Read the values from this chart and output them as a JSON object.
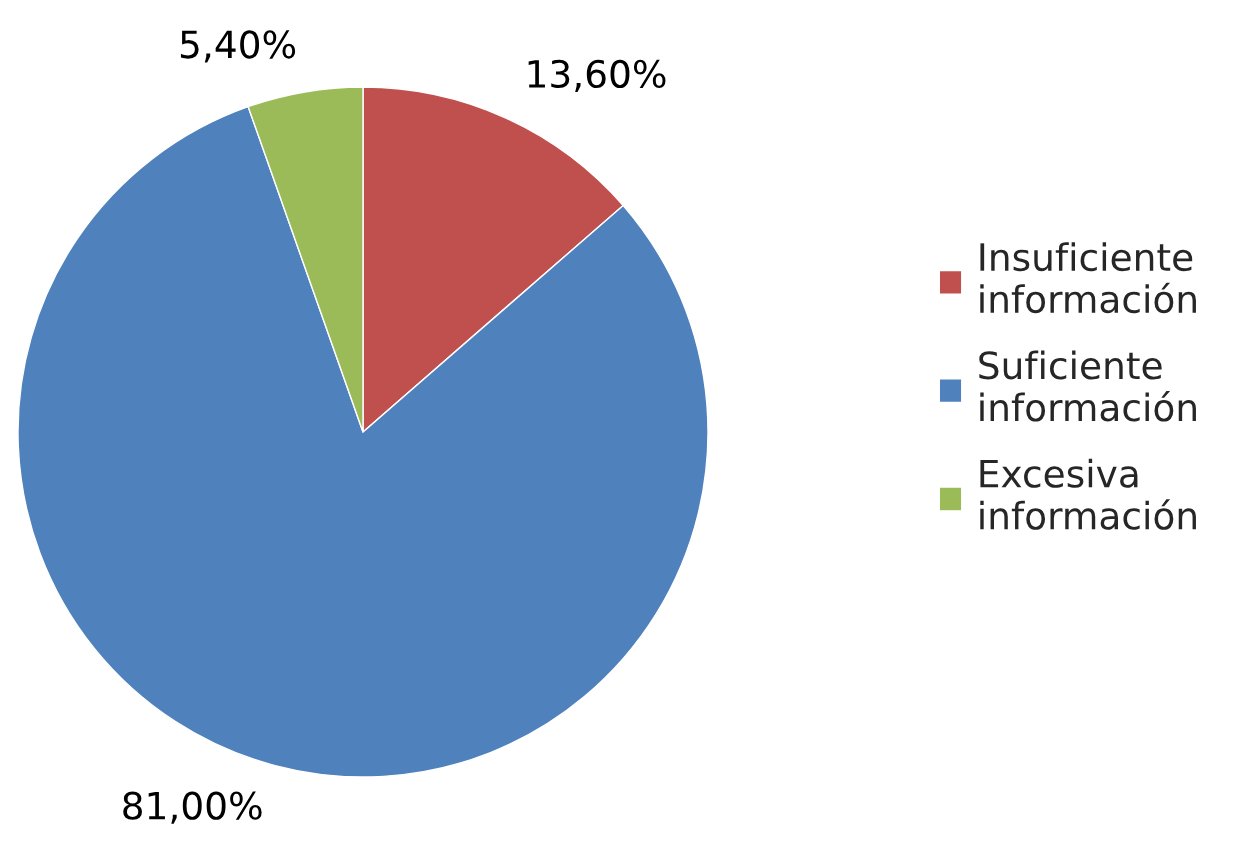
{
  "chart_data": {
    "type": "pie",
    "categories": [
      "Insuficiente\ninformación",
      "Suficiente\ninformación",
      "Excesiva\ninformación"
    ],
    "values": [
      13.6,
      81.0,
      5.4
    ],
    "colors": [
      "#c0504d",
      "#4f81bd",
      "#9bbb59"
    ],
    "value_labels": [
      "13,60%",
      "81,00%",
      "5,40%"
    ],
    "legend": "right"
  }
}
